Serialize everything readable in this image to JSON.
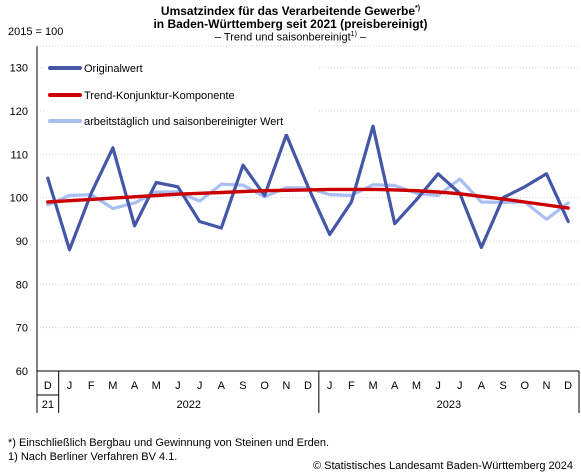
{
  "chart_data": {
    "type": "line",
    "title_line1": "Umsatzindex für das Verarbeitende Gewerbe",
    "title_line1_sup": "*)",
    "title_line2": "in Baden-Württemberg seit 2021 (preisbereinigt)",
    "subtitle": "– Trend und saisonbereinigt",
    "subtitle_sup": "1)",
    "subtitle_end": " –",
    "ylabel": "2015 = 100",
    "ylim": [
      60,
      135
    ],
    "yticks": [
      60,
      70,
      80,
      90,
      100,
      110,
      120,
      130
    ],
    "grid": true,
    "legend_position": "top-left",
    "x_months": [
      "D",
      "J",
      "F",
      "M",
      "A",
      "M",
      "J",
      "J",
      "A",
      "S",
      "O",
      "N",
      "D",
      "J",
      "F",
      "M",
      "A",
      "M",
      "J",
      "J",
      "A",
      "S",
      "O",
      "N",
      "D"
    ],
    "year_labels": [
      {
        "label": "21",
        "from": 0,
        "to": 0
      },
      {
        "label": "2022",
        "from": 1,
        "to": 12
      },
      {
        "label": "2023",
        "from": 13,
        "to": 24
      }
    ],
    "series": [
      {
        "name": "Originalwert",
        "color": "#4456a6",
        "values": [
          104.5,
          88.0,
          101.0,
          111.5,
          93.5,
          103.5,
          102.5,
          94.5,
          93.0,
          107.5,
          100.5,
          114.5,
          102.5,
          91.5,
          99.0,
          116.5,
          94.0,
          99.5,
          105.5,
          101.0,
          88.5,
          100.0,
          102.5,
          105.5,
          94.5
        ]
      },
      {
        "name": "Trend-Konjunktur-Komponente",
        "color": "#cc0000",
        "values": [
          99.0,
          99.3,
          99.6,
          99.9,
          100.2,
          100.5,
          100.8,
          101.0,
          101.2,
          101.4,
          101.6,
          101.7,
          101.8,
          101.9,
          101.9,
          101.9,
          101.8,
          101.6,
          101.3,
          100.9,
          100.3,
          99.7,
          99.0,
          98.3,
          97.6
        ]
      },
      {
        "name": "arbeitstäglich und saisonbereinigter Wert",
        "color": "#a9bff2",
        "values": [
          98.3,
          100.5,
          100.7,
          97.5,
          98.8,
          101.3,
          101.3,
          99.2,
          103.1,
          102.9,
          100.2,
          102.3,
          102.2,
          100.7,
          100.5,
          103.0,
          102.8,
          101.0,
          100.5,
          104.3,
          99.0,
          98.9,
          99.0,
          95.0,
          98.8
        ]
      }
    ]
  },
  "footnotes": {
    "note1": "*) Einschließlich Bergbau und Gewinnung von Steinen und Erden.",
    "note2": "1) Nach Berliner Verfahren BV 4.1.",
    "copyright": "© Statistisches Landesamt Baden-Württemberg 2024"
  }
}
